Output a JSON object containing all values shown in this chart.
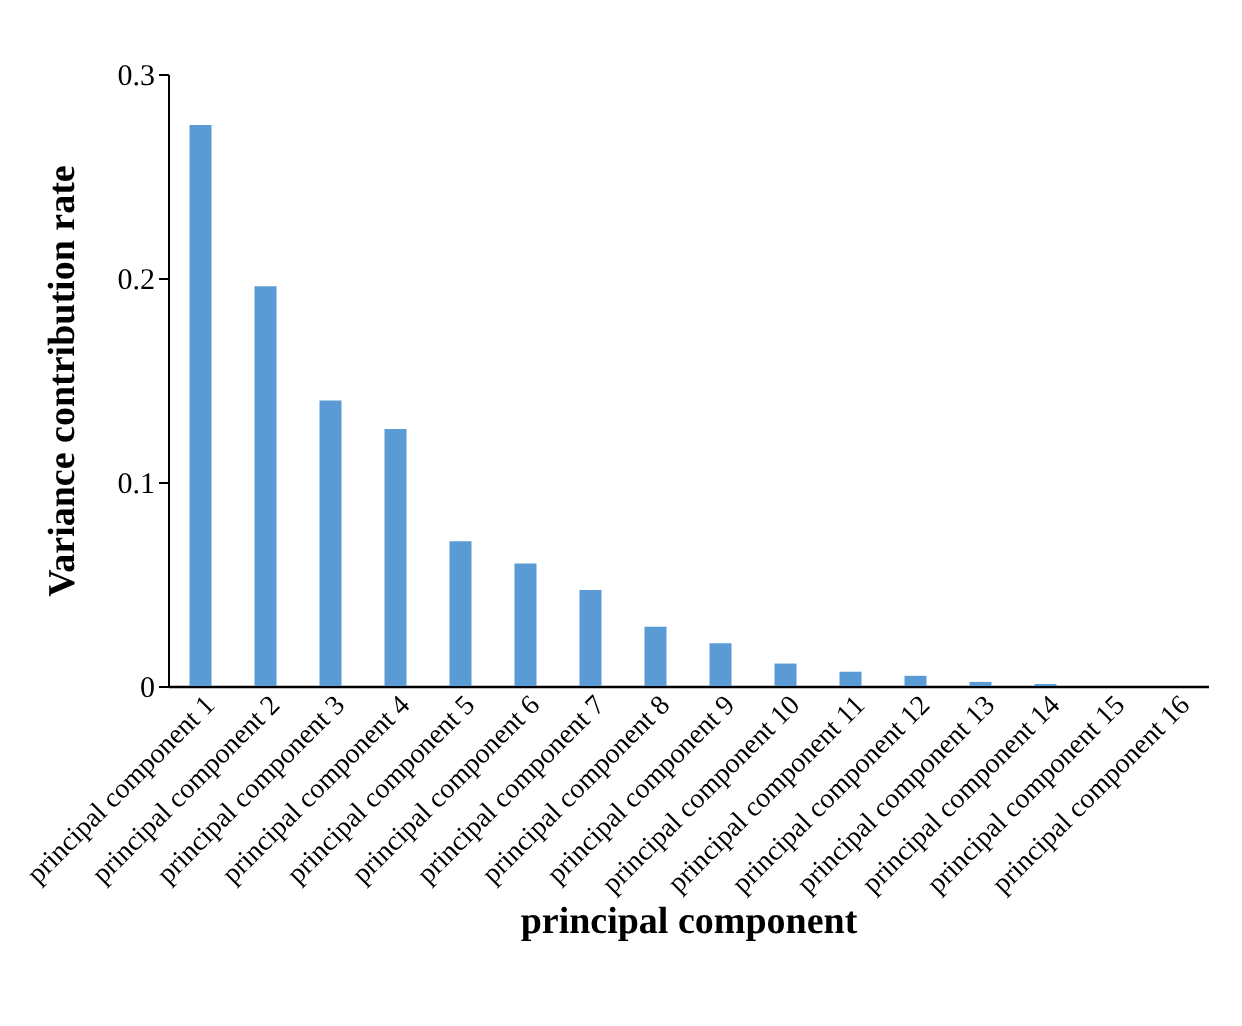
{
  "chart_data": {
    "type": "bar",
    "xlabel": "principal component",
    "ylabel": "Variance contribution rate",
    "categories": [
      "principal component 1",
      "principal component 2",
      "principal component 3",
      "principal component 4",
      "principal component 5",
      "principal component 6",
      "principal component 7",
      "principal component 8",
      "principal component 9",
      "principal component 10",
      "principal component 11",
      "principal component 12",
      "principal component 13",
      "principal component 14",
      "principal component 15",
      "principal component 16"
    ],
    "values": [
      0.275,
      0.196,
      0.14,
      0.126,
      0.071,
      0.06,
      0.047,
      0.029,
      0.021,
      0.011,
      0.007,
      0.005,
      0.002,
      0.001,
      0,
      0
    ],
    "color": "#5b9bd5",
    "ylim": [
      0,
      0.3
    ],
    "yticks": [
      0,
      0.1,
      0.2,
      0.3
    ],
    "grid": false
  }
}
